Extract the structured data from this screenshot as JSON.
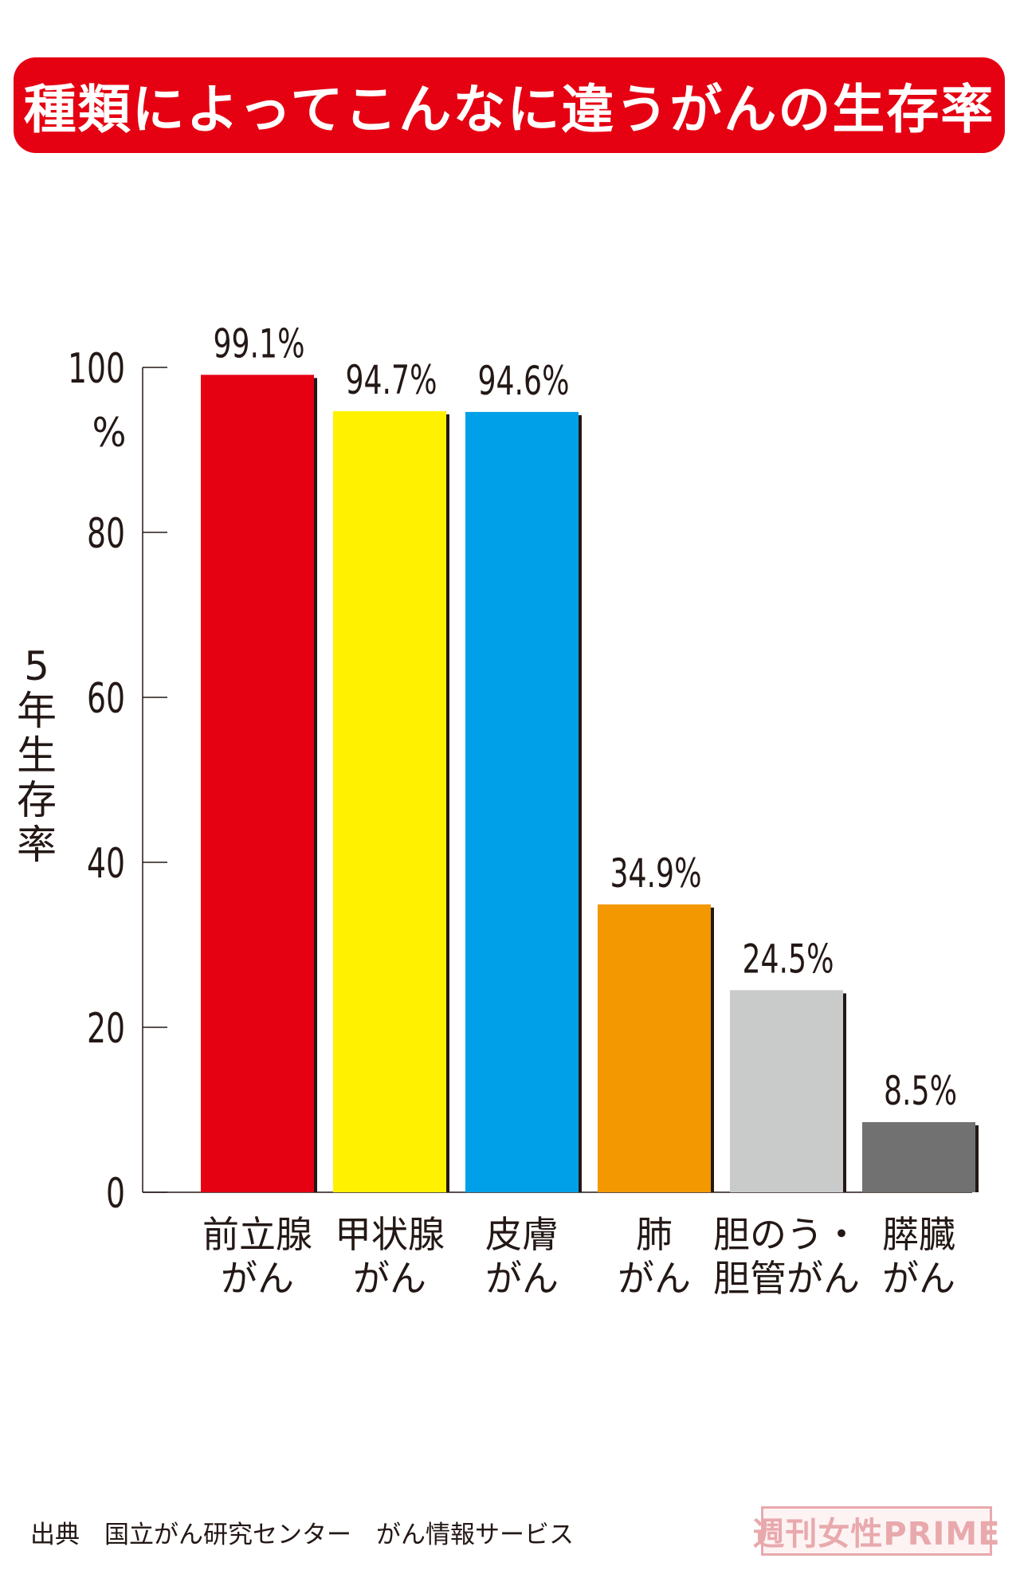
{
  "title": "種類によってこんなに違うがんの生存率",
  "chart_data": {
    "type": "bar",
    "categories": [
      [
        "前立腺",
        "がん"
      ],
      [
        "甲状腺",
        "がん"
      ],
      [
        "皮膚",
        "がん"
      ],
      [
        "肺",
        "がん"
      ],
      [
        "胆のう・",
        "胆管がん"
      ],
      [
        "膵臓",
        "がん"
      ]
    ],
    "values": [
      99.1,
      94.7,
      94.6,
      34.9,
      24.5,
      8.5
    ],
    "value_labels": [
      "99.1%",
      "94.7%",
      "94.6%",
      "34.9%",
      "24.5%",
      "8.5%"
    ],
    "colors": [
      "#e50012",
      "#fff100",
      "#00a0e9",
      "#f39800",
      "#c9caca",
      "#727171"
    ],
    "ylabel": "5年生存率",
    "ylabel_chars": [
      "5",
      "年",
      "生",
      "存",
      "率"
    ],
    "yticks": [
      "0",
      "20",
      "40",
      "60",
      "80",
      "100"
    ],
    "ytick_values": [
      0,
      20,
      40,
      60,
      80,
      100
    ],
    "ytick_unit": "%",
    "ylim": [
      0,
      100
    ],
    "grid": false,
    "legend": "none"
  },
  "source": "出典　国立がん研究センター　がん情報サービス",
  "logo": "週刊女性PRIME"
}
